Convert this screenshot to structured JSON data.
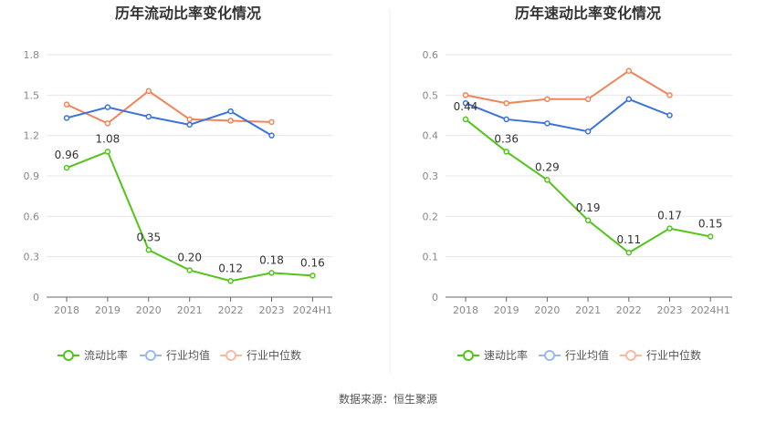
{
  "chart_data": [
    {
      "type": "line",
      "title": "历年流动比率变化情况",
      "categories": [
        "2018",
        "2019",
        "2020",
        "2021",
        "2022",
        "2023",
        "2024H1"
      ],
      "y_ticks": [
        "0",
        "0.3",
        "0.6",
        "0.9",
        "1.2",
        "1.5",
        "1.8"
      ],
      "ylim": [
        0,
        1.8
      ],
      "grid": true,
      "legend_position": "bottom",
      "series": [
        {
          "name": "流动比率",
          "color": "#52c41a",
          "values": [
            0.96,
            1.08,
            0.35,
            0.2,
            0.12,
            0.18,
            0.16
          ],
          "labels": [
            "0.96",
            "1.08",
            "0.35",
            "0.20",
            "0.12",
            "0.18",
            "0.16"
          ]
        },
        {
          "name": "行业均值",
          "color": "#3b73d9",
          "values": [
            1.33,
            1.41,
            1.34,
            1.28,
            1.38,
            1.2,
            null
          ]
        },
        {
          "name": "行业中位数",
          "color": "#f0845a",
          "values": [
            1.43,
            1.29,
            1.53,
            1.32,
            1.31,
            1.3,
            null
          ]
        }
      ]
    },
    {
      "type": "line",
      "title": "历年速动比率变化情况",
      "categories": [
        "2018",
        "2019",
        "2020",
        "2021",
        "2022",
        "2023",
        "2024H1"
      ],
      "y_ticks": [
        "0",
        "0.1",
        "0.2",
        "0.3",
        "0.4",
        "0.5",
        "0.6"
      ],
      "ylim": [
        0,
        0.6
      ],
      "grid": true,
      "legend_position": "bottom",
      "series": [
        {
          "name": "速动比率",
          "color": "#52c41a",
          "values": [
            0.44,
            0.36,
            0.29,
            0.19,
            0.11,
            0.17,
            0.15
          ],
          "labels": [
            "0.44",
            "0.36",
            "0.29",
            "0.19",
            "0.11",
            "0.17",
            "0.15"
          ]
        },
        {
          "name": "行业均值",
          "color": "#3b73d9",
          "values": [
            0.48,
            0.44,
            0.43,
            0.41,
            0.49,
            0.45,
            null
          ]
        },
        {
          "name": "行业中位数",
          "color": "#f0845a",
          "values": [
            0.5,
            0.48,
            0.49,
            0.49,
            0.56,
            0.5,
            null
          ]
        }
      ]
    }
  ],
  "footer": {
    "source": "数据来源：恒生聚源"
  }
}
